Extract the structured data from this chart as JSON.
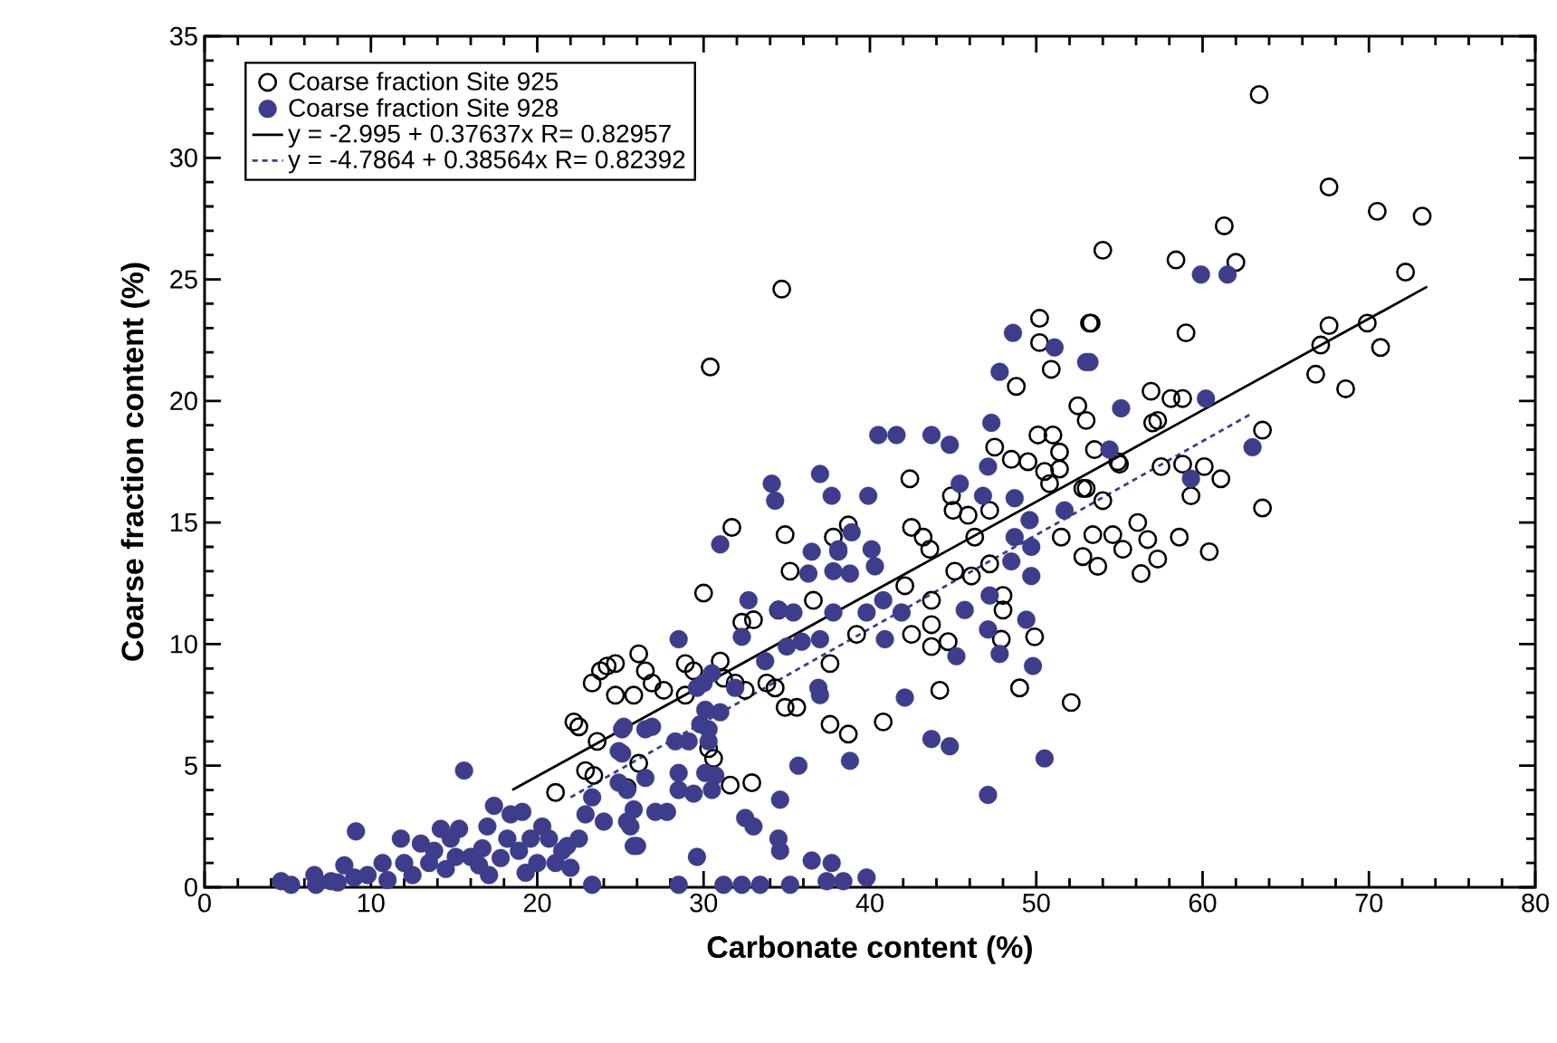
{
  "chart_data": {
    "type": "scatter",
    "xlabel": "Carbonate content (%)",
    "ylabel": "Coarse fraction content (%)",
    "xlim": [
      0,
      80
    ],
    "ylim": [
      0,
      35
    ],
    "xticks": [
      0,
      10,
      20,
      30,
      40,
      50,
      60,
      70,
      80
    ],
    "yticks": [
      0,
      5,
      10,
      15,
      20,
      25,
      30,
      35
    ],
    "grid": false,
    "legend": "top left",
    "marker": "circle",
    "series": [
      {
        "name": "Coarse fraction Site 925",
        "color": "#000000",
        "x": [
          30.4,
          34.7,
          63.4,
          67.6,
          70.5,
          73.2,
          61.3,
          54.0,
          58.4,
          62.0,
          72.2,
          53.3,
          59.0,
          67.6,
          67.1,
          69.9,
          70.7,
          66.8,
          68.6,
          56.9,
          58.1,
          58.8,
          57.3,
          57.0,
          63.6,
          58.8,
          60.1,
          61.1,
          57.5,
          59.3,
          63.6,
          56.1,
          54.6,
          56.7,
          58.6,
          60.4,
          57.3,
          55.2,
          53.7,
          56.3,
          54.0,
          54.9,
          53.0,
          50.2,
          53.2,
          50.2,
          50.9,
          48.8,
          52.5,
          53.0,
          47.5,
          50.1,
          51.0,
          51.4,
          53.5,
          48.5,
          49.5,
          50.5,
          51.4,
          55.0,
          42.4,
          44.9,
          50.8,
          52.8,
          42.5,
          43.2,
          45.0,
          45.9,
          47.2,
          46.3,
          51.5,
          52.8,
          53.4,
          43.6,
          45.1,
          46.1,
          43.7,
          42.1,
          47.2,
          48.0,
          38.7,
          37.8,
          36.6,
          39.2,
          42.5,
          43.7,
          43.7,
          44.7,
          48.0,
          49.9,
          47.9,
          37.6,
          49.0,
          52.1,
          44.2,
          40.8,
          37.6,
          38.7,
          35.6,
          31.7,
          34.9,
          30.0,
          35.2,
          32.3,
          33.0,
          34.5,
          26.1,
          24.7,
          24.2,
          26.5,
          26.9,
          23.3,
          25.8,
          27.6,
          28.9,
          29.4,
          31.0,
          31.9,
          28.9,
          31.2,
          32.5,
          33.8,
          34.3,
          34.9,
          22.2,
          22.5,
          23.6,
          22.9,
          23.4,
          21.1,
          25.4,
          30.3,
          30.6,
          31.6,
          32.9,
          24.7,
          23.8,
          26.1
        ],
        "values": [
          21.4,
          24.6,
          32.6,
          28.8,
          27.8,
          27.6,
          27.2,
          26.2,
          25.8,
          25.7,
          25.3,
          23.2,
          22.8,
          23.1,
          22.3,
          23.2,
          22.2,
          21.1,
          20.5,
          20.4,
          20.1,
          20.1,
          19.2,
          19.1,
          18.8,
          17.4,
          17.3,
          16.8,
          17.3,
          16.1,
          15.6,
          15.0,
          14.5,
          14.3,
          14.4,
          13.8,
          13.5,
          13.9,
          13.2,
          12.9,
          15.9,
          17.5,
          16.4,
          23.4,
          23.2,
          22.4,
          21.3,
          20.6,
          19.8,
          19.2,
          18.1,
          18.6,
          18.6,
          17.9,
          18.0,
          17.6,
          17.5,
          17.1,
          17.2,
          17.4,
          16.8,
          16.1,
          16.6,
          16.4,
          14.8,
          14.4,
          15.5,
          15.3,
          15.5,
          14.4,
          14.4,
          13.6,
          14.5,
          13.9,
          13.0,
          12.8,
          11.8,
          12.4,
          13.3,
          12.0,
          14.9,
          14.4,
          11.8,
          10.4,
          10.4,
          10.8,
          9.9,
          10.1,
          11.4,
          10.3,
          10.2,
          9.2,
          8.2,
          7.6,
          8.1,
          6.8,
          6.7,
          6.3,
          7.4,
          14.8,
          14.5,
          12.1,
          13.0,
          10.9,
          11.0,
          11.4,
          9.6,
          9.2,
          9.1,
          8.9,
          8.4,
          8.4,
          7.9,
          8.1,
          9.2,
          8.9,
          9.3,
          8.4,
          7.9,
          8.6,
          8.1,
          8.4,
          8.2,
          7.4,
          6.8,
          6.6,
          6.0,
          4.8,
          4.6,
          3.9,
          4.1,
          5.7,
          5.3,
          4.2,
          4.3,
          7.9,
          8.9,
          5.1
        ]
      },
      {
        "name": "Coarse fraction Site 928",
        "color": "#3d3d8c",
        "x": [
          59.9,
          61.5,
          53.2,
          60.2,
          55.1,
          54.4,
          63.0,
          59.3,
          48.6,
          51.1,
          53.0,
          47.8,
          40.5,
          41.6,
          43.7,
          44.8,
          47.3,
          37.0,
          37.7,
          39.9,
          47.1,
          45.4,
          46.8,
          48.7,
          49.6,
          51.7,
          38.9,
          40.1,
          36.5,
          38.1,
          40.3,
          48.7,
          49.7,
          48.5,
          49.7,
          36.3,
          37.8,
          39.8,
          40.8,
          41.9,
          37.8,
          45.7,
          47.2,
          47.1,
          49.4,
          40.9,
          47.8,
          45.2,
          49.8,
          36.9,
          42.1,
          38.8,
          43.7,
          44.8,
          50.5,
          47.1,
          36.5,
          37.7,
          37.4,
          38.4,
          39.8,
          15.6,
          9.1,
          4.6,
          5.2,
          6.7,
          6.6,
          8.4,
          7.6,
          9.8,
          10.7,
          11.8,
          12.0,
          12.5,
          14.2,
          15.3,
          13.8,
          13.5,
          14.5,
          15.1,
          16.0,
          16.7,
          17.1,
          17.4,
          18.4,
          19.1,
          18.2,
          18.9,
          19.6,
          20.3,
          21.1,
          21.8,
          22.5,
          23.3,
          22.9,
          23.3,
          25.1,
          25.1,
          24.9,
          26.5,
          26.5,
          25.4,
          25.8,
          24.0,
          20.0,
          28.5,
          31.2,
          32.3,
          33.4,
          35.2,
          29.6,
          34.5,
          34.6,
          34.6,
          32.5,
          33.0,
          26.0,
          25.6,
          27.1,
          27.8,
          25.4,
          25.8,
          28.5,
          28.5,
          29.4,
          30.1,
          30.7,
          30.5,
          29.1,
          28.3,
          30.3,
          24.9,
          25.2,
          26.9,
          29.8,
          30.3,
          30.1,
          31.0,
          29.6,
          30.0,
          30.5,
          31.9,
          28.5,
          32.7,
          32.3,
          33.7,
          35.0,
          35.9,
          37.0,
          34.5,
          35.4,
          31.0,
          34.1,
          34.3,
          38.1,
          38.8,
          37.0,
          35.7,
          20.7,
          21.5,
          22.0,
          16.5,
          17.8,
          19.3,
          13.0,
          11.0,
          9.0,
          8.0,
          14.8,
          17.0
        ],
        "values": [
          25.2,
          25.2,
          21.6,
          20.1,
          19.7,
          18.0,
          18.1,
          16.8,
          22.8,
          22.2,
          21.6,
          21.2,
          18.6,
          18.6,
          18.6,
          18.2,
          19.1,
          17.0,
          16.1,
          16.1,
          17.3,
          16.6,
          16.1,
          16.0,
          15.1,
          15.5,
          14.6,
          13.9,
          13.8,
          13.8,
          13.2,
          14.4,
          14.0,
          13.4,
          12.8,
          12.9,
          13.0,
          11.3,
          11.8,
          11.3,
          11.3,
          11.4,
          12.0,
          10.6,
          11.0,
          10.2,
          9.6,
          9.5,
          9.1,
          8.2,
          7.8,
          5.2,
          6.1,
          5.8,
          5.3,
          3.8,
          1.1,
          1.0,
          0.25,
          0.25,
          0.4,
          4.8,
          2.3,
          0.25,
          0.1,
          0.1,
          0.5,
          0.9,
          0.25,
          0.5,
          1.0,
          2.0,
          1.0,
          0.5,
          2.4,
          2.4,
          1.5,
          1.0,
          0.75,
          1.25,
          1.25,
          1.6,
          0.5,
          3.35,
          3.0,
          3.1,
          2.0,
          1.5,
          2.0,
          2.5,
          1.0,
          1.7,
          2.0,
          3.7,
          3.0,
          0.1,
          6.5,
          5.5,
          4.3,
          6.5,
          4.5,
          2.7,
          1.7,
          2.7,
          1.0,
          0.1,
          0.1,
          0.1,
          0.1,
          0.1,
          1.25,
          2.0,
          1.5,
          3.6,
          2.85,
          2.5,
          1.7,
          2.5,
          3.1,
          3.1,
          4.0,
          3.2,
          4.7,
          4.0,
          3.85,
          4.7,
          4.6,
          4.0,
          6.0,
          6.0,
          6.0,
          5.6,
          6.6,
          6.6,
          6.7,
          6.5,
          7.3,
          7.2,
          8.2,
          8.4,
          8.8,
          8.2,
          10.2,
          11.8,
          10.3,
          9.3,
          9.9,
          10.1,
          10.2,
          11.4,
          11.3,
          14.1,
          16.6,
          15.9,
          13.9,
          12.9,
          7.9,
          5.0,
          2.0,
          1.5,
          0.8,
          0.9,
          1.2,
          0.6,
          1.8,
          0.3,
          0.4,
          0.2,
          2.0,
          2.5
        ]
      },
      {
        "name": "y = -2.995 + 0.37637x R= 0.82957",
        "type": "line",
        "color": "#000000",
        "marker": "none",
        "line_style": "solid",
        "x": [
          18.5,
          73.5
        ],
        "values": [
          4.0,
          24.7
        ]
      },
      {
        "name": "y = -4.7864 + 0.38564x R= 0.82392",
        "type": "line",
        "color": "#3d3d8c",
        "marker": "none",
        "line_style": "dashed",
        "x": [
          22,
          63
        ],
        "values": [
          3.7,
          19.5
        ]
      }
    ]
  }
}
